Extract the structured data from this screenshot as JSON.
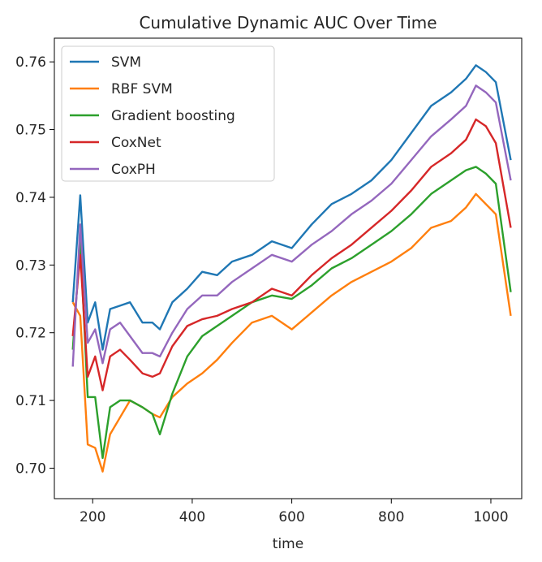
{
  "chart_data": {
    "type": "line",
    "title": "Cumulative Dynamic AUC Over Time",
    "xlabel": "time",
    "ylabel": "",
    "xlim": [
      123,
      1062
    ],
    "ylim": [
      0.6955,
      0.7635
    ],
    "xticks": [
      200,
      400,
      600,
      800,
      1000
    ],
    "yticks": [
      0.7,
      0.71,
      0.72,
      0.73,
      0.74,
      0.75,
      0.76
    ],
    "ytick_labels": [
      "0.70",
      "0.71",
      "0.72",
      "0.73",
      "0.74",
      "0.75",
      "0.76"
    ],
    "grid": false,
    "legend_position": "top-left",
    "series": [
      {
        "name": "SVM",
        "color": "#1f77b4",
        "x": [
          160,
          175,
          190,
          205,
          220,
          235,
          255,
          275,
          300,
          320,
          335,
          360,
          390,
          420,
          450,
          480,
          520,
          560,
          600,
          640,
          680,
          720,
          760,
          800,
          840,
          880,
          920,
          950,
          970,
          990,
          1010,
          1040
        ],
        "y": [
          0.7245,
          0.7403,
          0.7215,
          0.7245,
          0.7175,
          0.7235,
          0.724,
          0.7245,
          0.7215,
          0.7215,
          0.7205,
          0.7245,
          0.7265,
          0.729,
          0.7285,
          0.7305,
          0.7315,
          0.7335,
          0.7325,
          0.736,
          0.739,
          0.7405,
          0.7425,
          0.7455,
          0.7495,
          0.7535,
          0.7555,
          0.7575,
          0.7595,
          0.7585,
          0.757,
          0.7455
        ]
      },
      {
        "name": "RBF SVM",
        "color": "#ff7f0e",
        "x": [
          160,
          175,
          190,
          205,
          220,
          235,
          255,
          275,
          300,
          320,
          335,
          360,
          390,
          420,
          450,
          480,
          520,
          560,
          600,
          640,
          680,
          720,
          760,
          800,
          840,
          880,
          920,
          950,
          970,
          990,
          1010,
          1040
        ],
        "y": [
          0.7245,
          0.7225,
          0.7035,
          0.703,
          0.6995,
          0.705,
          0.7075,
          0.71,
          0.709,
          0.708,
          0.7075,
          0.7105,
          0.7125,
          0.714,
          0.716,
          0.7185,
          0.7215,
          0.7225,
          0.7205,
          0.723,
          0.7255,
          0.7275,
          0.729,
          0.7305,
          0.7325,
          0.7355,
          0.7365,
          0.7385,
          0.7405,
          0.739,
          0.7375,
          0.7225
        ]
      },
      {
        "name": "Gradient boosting",
        "color": "#2ca02c",
        "x": [
          160,
          175,
          190,
          205,
          220,
          235,
          255,
          275,
          300,
          320,
          335,
          360,
          390,
          420,
          450,
          480,
          520,
          560,
          600,
          640,
          680,
          720,
          760,
          800,
          840,
          880,
          920,
          950,
          970,
          990,
          1010,
          1040
        ],
        "y": [
          0.7175,
          0.7335,
          0.7105,
          0.7105,
          0.7015,
          0.709,
          0.71,
          0.71,
          0.709,
          0.708,
          0.705,
          0.711,
          0.7165,
          0.7195,
          0.721,
          0.7225,
          0.7245,
          0.7255,
          0.725,
          0.727,
          0.7295,
          0.731,
          0.733,
          0.735,
          0.7375,
          0.7405,
          0.7425,
          0.744,
          0.7445,
          0.7435,
          0.742,
          0.726
        ]
      },
      {
        "name": "CoxNet",
        "color": "#d62728",
        "x": [
          160,
          175,
          190,
          205,
          220,
          235,
          255,
          275,
          300,
          320,
          335,
          360,
          390,
          420,
          450,
          480,
          520,
          560,
          600,
          640,
          680,
          720,
          760,
          800,
          840,
          880,
          920,
          950,
          970,
          990,
          1010,
          1040
        ],
        "y": [
          0.7195,
          0.7315,
          0.7135,
          0.7165,
          0.7115,
          0.7165,
          0.7175,
          0.716,
          0.714,
          0.7135,
          0.714,
          0.718,
          0.721,
          0.722,
          0.7225,
          0.7235,
          0.7245,
          0.7265,
          0.7255,
          0.7285,
          0.731,
          0.733,
          0.7355,
          0.738,
          0.741,
          0.7445,
          0.7465,
          0.7485,
          0.7515,
          0.7505,
          0.748,
          0.7355
        ]
      },
      {
        "name": "CoxPH",
        "color": "#9467bd",
        "x": [
          160,
          175,
          190,
          205,
          220,
          235,
          255,
          275,
          300,
          320,
          335,
          360,
          390,
          420,
          450,
          480,
          520,
          560,
          600,
          640,
          680,
          720,
          760,
          800,
          840,
          880,
          920,
          950,
          970,
          990,
          1010,
          1040
        ],
        "y": [
          0.715,
          0.736,
          0.7185,
          0.7205,
          0.7155,
          0.7205,
          0.7215,
          0.7195,
          0.717,
          0.717,
          0.7165,
          0.72,
          0.7235,
          0.7255,
          0.7255,
          0.7275,
          0.7295,
          0.7315,
          0.7305,
          0.733,
          0.735,
          0.7375,
          0.7395,
          0.742,
          0.7455,
          0.749,
          0.7515,
          0.7535,
          0.7565,
          0.7555,
          0.754,
          0.7425
        ]
      }
    ]
  }
}
